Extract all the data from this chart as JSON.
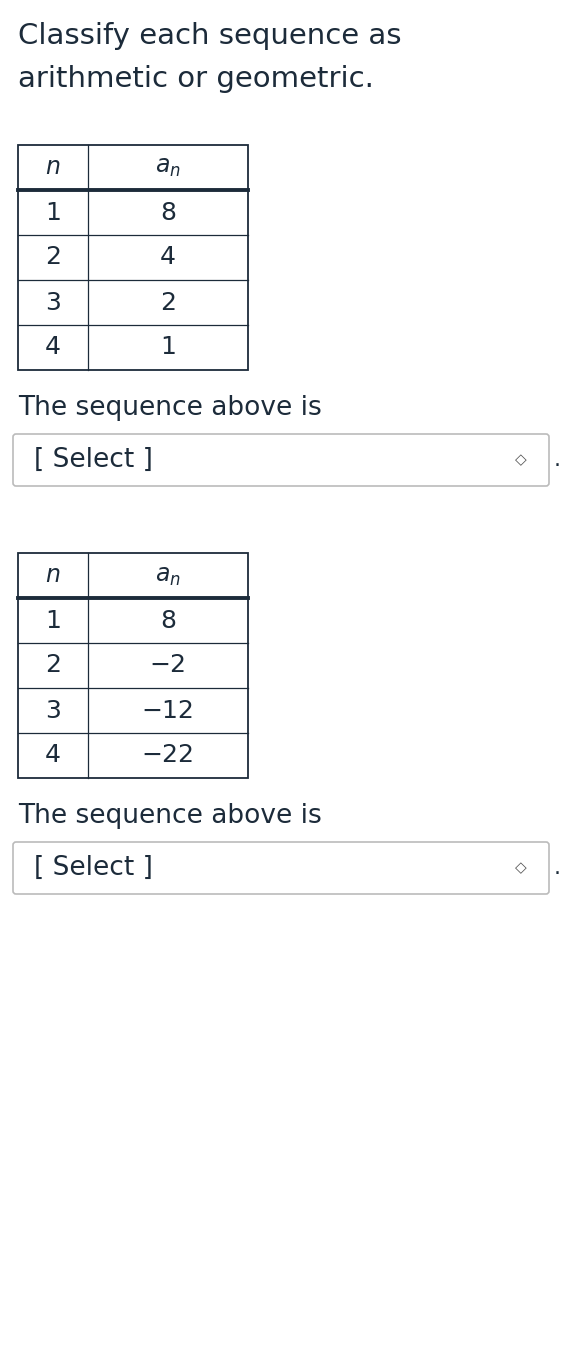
{
  "title_line1": "Classify each sequence as",
  "title_line2": "arithmetic or geometric.",
  "bg_color": "#ffffff",
  "text_color": "#1c2b3a",
  "table1": {
    "n_values": [
      "1",
      "2",
      "3",
      "4"
    ],
    "a_values": [
      "8",
      "4",
      "2",
      "1"
    ]
  },
  "table2": {
    "n_values": [
      "1",
      "2",
      "3",
      "4"
    ],
    "a_values": [
      "8",
      "−2",
      "−12",
      "−22"
    ]
  },
  "title_fontsize": 21,
  "header_fontsize": 17,
  "cell_fontsize": 18,
  "label_fontsize": 19
}
